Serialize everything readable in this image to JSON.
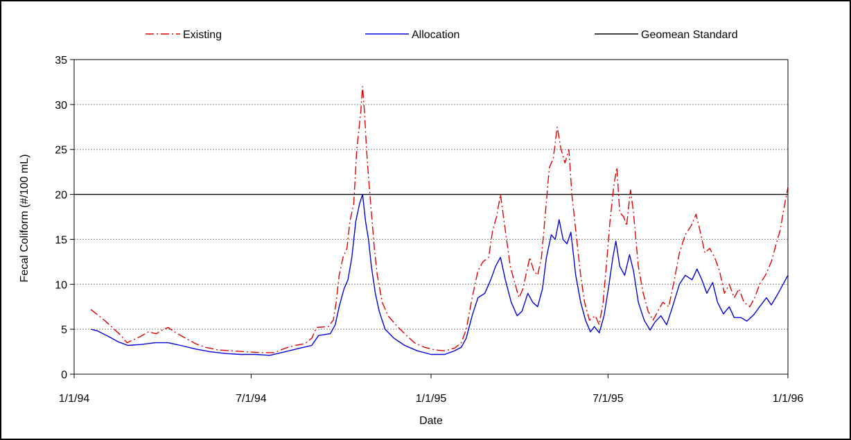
{
  "chart_data": {
    "type": "line",
    "xlabel": "Date",
    "ylabel": "Fecal Coliform (#/100 mL)",
    "ylim": [
      0,
      35
    ],
    "yticks": [
      0,
      5,
      10,
      15,
      20,
      25,
      30,
      35
    ],
    "xticks": [
      "1/1/94",
      "7/1/94",
      "1/1/95",
      "7/1/95",
      "1/1/96"
    ],
    "xlim": [
      "1994-01-01",
      "1996-01-01"
    ],
    "grid": "horizontal dotted",
    "legend_position": "top",
    "reference_line": {
      "name": "Geomean Standard",
      "value": 20,
      "color": "#000000"
    },
    "series": [
      {
        "name": "Existing",
        "color": "#e00000",
        "style": "dash-dot",
        "points": [
          [
            "1994-01-18",
            7.2
          ],
          [
            "1994-01-25",
            6.6
          ],
          [
            "1994-02-01",
            6.0
          ],
          [
            "1994-02-10",
            5.1
          ],
          [
            "1994-02-18",
            4.3
          ],
          [
            "1994-02-24",
            3.5
          ],
          [
            "1994-03-02",
            3.8
          ],
          [
            "1994-03-10",
            4.2
          ],
          [
            "1994-03-18",
            4.7
          ],
          [
            "1994-03-26",
            4.5
          ],
          [
            "1994-04-01",
            4.9
          ],
          [
            "1994-04-07",
            5.2
          ],
          [
            "1994-04-15",
            4.6
          ],
          [
            "1994-04-25",
            4.0
          ],
          [
            "1994-05-05",
            3.4
          ],
          [
            "1994-05-15",
            3.0
          ],
          [
            "1994-05-28",
            2.7
          ],
          [
            "1994-06-10",
            2.6
          ],
          [
            "1994-06-25",
            2.5
          ],
          [
            "1994-07-10",
            2.4
          ],
          [
            "1994-07-25",
            2.4
          ],
          [
            "1994-08-05",
            2.9
          ],
          [
            "1994-08-15",
            3.2
          ],
          [
            "1994-08-25",
            3.4
          ],
          [
            "1994-09-01",
            4.0
          ],
          [
            "1994-09-06",
            5.2
          ],
          [
            "1994-09-18",
            5.3
          ],
          [
            "1994-09-23",
            6.0
          ],
          [
            "1994-09-26",
            8.0
          ],
          [
            "1994-09-29",
            11.0
          ],
          [
            "1994-10-03",
            13.0
          ],
          [
            "1994-10-07",
            14.0
          ],
          [
            "1994-10-10",
            17.0
          ],
          [
            "1994-10-14",
            19.0
          ],
          [
            "1994-10-17",
            25.0
          ],
          [
            "1994-10-21",
            29.0
          ],
          [
            "1994-10-23",
            32.0
          ],
          [
            "1994-10-25",
            29.0
          ],
          [
            "1994-10-27",
            25.0
          ],
          [
            "1994-10-29",
            22.0
          ],
          [
            "1994-11-01",
            18.0
          ],
          [
            "1994-11-04",
            14.0
          ],
          [
            "1994-11-07",
            11.0
          ],
          [
            "1994-11-12",
            8.0
          ],
          [
            "1994-11-18",
            6.5
          ],
          [
            "1994-11-26",
            5.5
          ],
          [
            "1994-12-05",
            4.5
          ],
          [
            "1994-12-15",
            3.5
          ],
          [
            "1994-12-25",
            3.0
          ],
          [
            "1995-01-05",
            2.7
          ],
          [
            "1995-01-15",
            2.6
          ],
          [
            "1995-01-25",
            2.9
          ],
          [
            "1995-02-01",
            3.5
          ],
          [
            "1995-02-06",
            5.0
          ],
          [
            "1995-02-12",
            8.5
          ],
          [
            "1995-02-18",
            11.5
          ],
          [
            "1995-02-23",
            12.5
          ],
          [
            "1995-03-01",
            13.0
          ],
          [
            "1995-03-05",
            16.0
          ],
          [
            "1995-03-09",
            17.5
          ],
          [
            "1995-03-13",
            20.0
          ],
          [
            "1995-03-18",
            16.0
          ],
          [
            "1995-03-23",
            12.0
          ],
          [
            "1995-03-28",
            10.0
          ],
          [
            "1995-04-01",
            8.5
          ],
          [
            "1995-04-05",
            9.5
          ],
          [
            "1995-04-09",
            11.5
          ],
          [
            "1995-04-12",
            13.0
          ],
          [
            "1995-04-16",
            11.5
          ],
          [
            "1995-04-20",
            11.0
          ],
          [
            "1995-04-24",
            13.0
          ],
          [
            "1995-04-28",
            18.0
          ],
          [
            "1995-05-02",
            23.0
          ],
          [
            "1995-05-06",
            24.0
          ],
          [
            "1995-05-10",
            27.5
          ],
          [
            "1995-05-14",
            25.0
          ],
          [
            "1995-05-18",
            23.5
          ],
          [
            "1995-05-22",
            25.0
          ],
          [
            "1995-05-25",
            20.0
          ],
          [
            "1995-05-30",
            15.0
          ],
          [
            "1995-06-03",
            11.0
          ],
          [
            "1995-06-07",
            8.0
          ],
          [
            "1995-06-12",
            6.0
          ],
          [
            "1995-06-18",
            6.5
          ],
          [
            "1995-06-22",
            5.5
          ],
          [
            "1995-06-26",
            8.0
          ],
          [
            "1995-06-30",
            13.0
          ],
          [
            "1995-07-03",
            17.0
          ],
          [
            "1995-07-07",
            21.0
          ],
          [
            "1995-07-10",
            23.0
          ],
          [
            "1995-07-13",
            18.0
          ],
          [
            "1995-07-17",
            17.5
          ],
          [
            "1995-07-20",
            16.5
          ],
          [
            "1995-07-24",
            20.5
          ],
          [
            "1995-07-27",
            18.0
          ],
          [
            "1995-08-01",
            12.0
          ],
          [
            "1995-08-06",
            9.0
          ],
          [
            "1995-08-11",
            7.0
          ],
          [
            "1995-08-16",
            6.0
          ],
          [
            "1995-08-21",
            7.0
          ],
          [
            "1995-08-26",
            8.0
          ],
          [
            "1995-09-01",
            7.5
          ],
          [
            "1995-09-06",
            10.0
          ],
          [
            "1995-09-12",
            13.5
          ],
          [
            "1995-09-18",
            15.5
          ],
          [
            "1995-09-24",
            16.5
          ],
          [
            "1995-09-29",
            17.8
          ],
          [
            "1995-10-03",
            16.0
          ],
          [
            "1995-10-08",
            13.5
          ],
          [
            "1995-10-13",
            14.0
          ],
          [
            "1995-10-18",
            13.0
          ],
          [
            "1995-10-23",
            11.5
          ],
          [
            "1995-10-28",
            9.0
          ],
          [
            "1995-11-02",
            10.0
          ],
          [
            "1995-11-07",
            8.5
          ],
          [
            "1995-11-12",
            9.5
          ],
          [
            "1995-11-17",
            8.0
          ],
          [
            "1995-11-23",
            7.5
          ],
          [
            "1995-11-28",
            8.5
          ],
          [
            "1995-12-03",
            10.0
          ],
          [
            "1995-12-09",
            11.0
          ],
          [
            "1995-12-15",
            12.5
          ],
          [
            "1995-12-20",
            14.5
          ],
          [
            "1995-12-24",
            16.0
          ],
          [
            "1995-12-28",
            18.5
          ],
          [
            "1996-01-01",
            20.8
          ]
        ]
      },
      {
        "name": "Allocation",
        "color": "#0000e0",
        "style": "solid",
        "points": [
          [
            "1994-01-18",
            5.0
          ],
          [
            "1994-01-25",
            4.8
          ],
          [
            "1994-02-05",
            4.2
          ],
          [
            "1994-02-15",
            3.6
          ],
          [
            "1994-02-25",
            3.2
          ],
          [
            "1994-03-10",
            3.3
          ],
          [
            "1994-03-25",
            3.5
          ],
          [
            "1994-04-07",
            3.5
          ],
          [
            "1994-04-20",
            3.2
          ],
          [
            "1994-05-05",
            2.8
          ],
          [
            "1994-05-20",
            2.5
          ],
          [
            "1994-06-05",
            2.3
          ],
          [
            "1994-06-20",
            2.2
          ],
          [
            "1994-07-05",
            2.2
          ],
          [
            "1994-07-20",
            2.1
          ],
          [
            "1994-08-05",
            2.5
          ],
          [
            "1994-08-20",
            2.9
          ],
          [
            "1994-09-01",
            3.2
          ],
          [
            "1994-09-08",
            4.3
          ],
          [
            "1994-09-20",
            4.5
          ],
          [
            "1994-09-25",
            5.5
          ],
          [
            "1994-09-29",
            7.5
          ],
          [
            "1994-10-04",
            9.5
          ],
          [
            "1994-10-08",
            10.5
          ],
          [
            "1994-10-12",
            13.0
          ],
          [
            "1994-10-16",
            17.0
          ],
          [
            "1994-10-20",
            19.0
          ],
          [
            "1994-10-23",
            20.0
          ],
          [
            "1994-10-26",
            17.0
          ],
          [
            "1994-10-29",
            15.0
          ],
          [
            "1994-11-01",
            12.0
          ],
          [
            "1994-11-05",
            9.0
          ],
          [
            "1994-11-09",
            7.0
          ],
          [
            "1994-11-15",
            5.0
          ],
          [
            "1994-11-24",
            4.0
          ],
          [
            "1994-12-05",
            3.2
          ],
          [
            "1994-12-18",
            2.6
          ],
          [
            "1995-01-01",
            2.2
          ],
          [
            "1995-01-15",
            2.2
          ],
          [
            "1995-01-25",
            2.6
          ],
          [
            "1995-02-01",
            3.0
          ],
          [
            "1995-02-06",
            4.0
          ],
          [
            "1995-02-12",
            6.5
          ],
          [
            "1995-02-18",
            8.5
          ],
          [
            "1995-02-25",
            9.0
          ],
          [
            "1995-03-03",
            10.5
          ],
          [
            "1995-03-08",
            12.0
          ],
          [
            "1995-03-13",
            13.0
          ],
          [
            "1995-03-18",
            10.5
          ],
          [
            "1995-03-24",
            8.0
          ],
          [
            "1995-03-30",
            6.5
          ],
          [
            "1995-04-04",
            7.0
          ],
          [
            "1995-04-10",
            9.0
          ],
          [
            "1995-04-15",
            8.0
          ],
          [
            "1995-04-20",
            7.5
          ],
          [
            "1995-04-25",
            9.5
          ],
          [
            "1995-04-29",
            13.0
          ],
          [
            "1995-05-04",
            15.5
          ],
          [
            "1995-05-08",
            15.0
          ],
          [
            "1995-05-12",
            17.2
          ],
          [
            "1995-05-16",
            15.0
          ],
          [
            "1995-05-20",
            14.5
          ],
          [
            "1995-05-24",
            15.8
          ],
          [
            "1995-05-29",
            11.0
          ],
          [
            "1995-06-03",
            8.0
          ],
          [
            "1995-06-08",
            6.0
          ],
          [
            "1995-06-13",
            4.7
          ],
          [
            "1995-06-17",
            5.3
          ],
          [
            "1995-06-22",
            4.6
          ],
          [
            "1995-06-27",
            6.5
          ],
          [
            "1995-07-02",
            10.0
          ],
          [
            "1995-07-06",
            13.0
          ],
          [
            "1995-07-09",
            14.8
          ],
          [
            "1995-07-13",
            12.0
          ],
          [
            "1995-07-18",
            11.0
          ],
          [
            "1995-07-23",
            13.3
          ],
          [
            "1995-07-27",
            11.5
          ],
          [
            "1995-08-01",
            8.0
          ],
          [
            "1995-08-07",
            6.0
          ],
          [
            "1995-08-13",
            4.9
          ],
          [
            "1995-08-18",
            5.8
          ],
          [
            "1995-08-24",
            6.5
          ],
          [
            "1995-08-30",
            5.5
          ],
          [
            "1995-09-05",
            7.5
          ],
          [
            "1995-09-12",
            10.0
          ],
          [
            "1995-09-18",
            11.0
          ],
          [
            "1995-09-25",
            10.5
          ],
          [
            "1995-09-30",
            11.7
          ],
          [
            "1995-10-05",
            10.5
          ],
          [
            "1995-10-10",
            9.0
          ],
          [
            "1995-10-16",
            10.2
          ],
          [
            "1995-10-21",
            8.0
          ],
          [
            "1995-10-27",
            6.7
          ],
          [
            "1995-11-02",
            7.5
          ],
          [
            "1995-11-07",
            6.3
          ],
          [
            "1995-11-14",
            6.3
          ],
          [
            "1995-11-20",
            5.9
          ],
          [
            "1995-11-27",
            6.6
          ],
          [
            "1995-12-03",
            7.5
          ],
          [
            "1995-12-10",
            8.5
          ],
          [
            "1995-12-15",
            7.7
          ],
          [
            "1995-12-21",
            8.8
          ],
          [
            "1995-12-27",
            10.0
          ],
          [
            "1996-01-01",
            11.0
          ]
        ]
      }
    ]
  }
}
